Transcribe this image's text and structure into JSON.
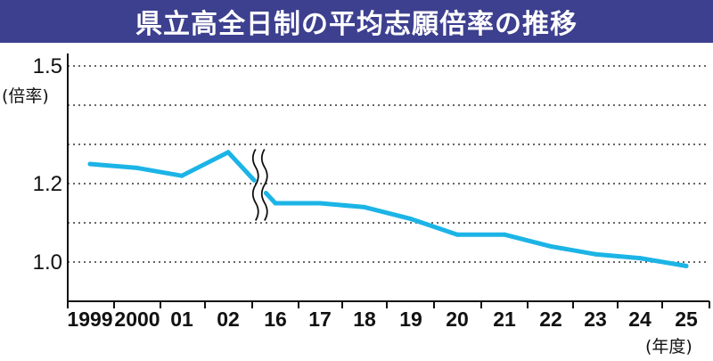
{
  "chart_data": {
    "type": "line",
    "title": "県立高全日制の平均志願倍率の推移",
    "ylabel": "(倍率)",
    "xlabel": "(年度)",
    "ylim": [
      0.9,
      1.5
    ],
    "yticks": [
      "1.5",
      "1.2",
      "1.0"
    ],
    "categories": [
      "1999",
      "2000",
      "01",
      "02",
      "16",
      "17",
      "18",
      "19",
      "20",
      "21",
      "22",
      "23",
      "24",
      "25"
    ],
    "axis_break_after": "02",
    "grid": "dotted horizontal",
    "series": [
      {
        "color": "#1cb4e6",
        "values": [
          1.25,
          1.24,
          1.22,
          1.28,
          1.15,
          1.15,
          1.14,
          1.11,
          1.07,
          1.07,
          1.04,
          1.02,
          1.01,
          0.99
        ]
      }
    ]
  }
}
